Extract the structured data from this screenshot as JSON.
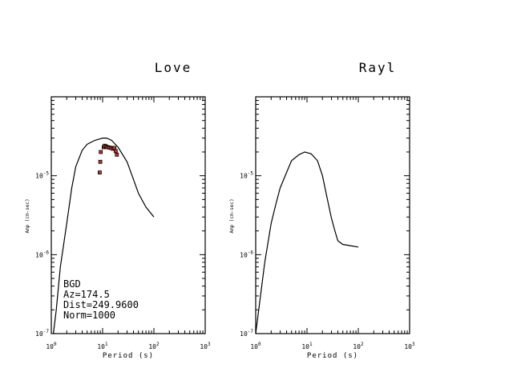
{
  "chart_data": [
    {
      "type": "line",
      "title": "Love",
      "xlabel": "Period (s)",
      "ylabel": "Amp (cm-sec)",
      "xscale": "log",
      "yscale": "log",
      "xlim": [
        1,
        1000
      ],
      "ylim": [
        1e-07,
        0.0001
      ],
      "x_ticks": [
        "10^0",
        "10^1",
        "10^2",
        "10^3"
      ],
      "y_ticks": [
        "10^-7",
        "10^-6",
        "10^-5"
      ],
      "series": [
        {
          "kind": "line",
          "x": [
            1.1,
            1.25,
            1.5,
            2.0,
            2.5,
            3.0,
            4.0,
            5.0,
            7.0,
            10.0,
            12.0,
            15.0,
            20.0,
            30.0,
            40.0,
            50.0,
            70.0,
            100.0
          ],
          "y": [
            8e-08,
            2e-07,
            7e-07,
            2.5e-06,
            7e-06,
            1.3e-05,
            2.1e-05,
            2.5e-05,
            2.8e-05,
            3e-05,
            3e-05,
            2.8e-05,
            2.3e-05,
            1.5e-05,
            9e-06,
            6e-06,
            4e-06,
            3e-06
          ]
        },
        {
          "kind": "scatter",
          "color": "#c0392b",
          "x": [
            8.8,
            9.0,
            9.2,
            10.5,
            11.0,
            11.7,
            12.5,
            13.5,
            14.5,
            15.8,
            17.0,
            18.0,
            19.0
          ],
          "y": [
            1.1e-05,
            1.5e-05,
            2e-05,
            2.3e-05,
            2.4e-05,
            2.35e-05,
            2.3e-05,
            2.28e-05,
            2.25e-05,
            2.2e-05,
            2.25e-05,
            2.05e-05,
            1.85e-05
          ]
        }
      ],
      "annotations": [
        "BGD",
        "Az=174.5",
        "Dist=249.9600",
        "Norm=1000"
      ]
    },
    {
      "type": "line",
      "title": "Rayl",
      "xlabel": "Period (s)",
      "ylabel": "Amp (cm-sec)",
      "xscale": "log",
      "yscale": "log",
      "xlim": [
        1,
        1000
      ],
      "ylim": [
        1e-07,
        0.0001
      ],
      "x_ticks": [
        "10^0",
        "10^1",
        "10^2",
        "10^3"
      ],
      "y_ticks": [
        "10^-7",
        "10^-6",
        "10^-5"
      ],
      "series": [
        {
          "kind": "line",
          "x": [
            1.0,
            1.5,
            2.0,
            2.5,
            3.0,
            4.0,
            5.0,
            7.0,
            9.0,
            12.0,
            16.0,
            20.0,
            25.0,
            30.0,
            35.0,
            40.0,
            50.0,
            70.0,
            100.0
          ],
          "y": [
            8e-08,
            8e-07,
            2.5e-06,
            4.5e-06,
            7e-06,
            1.1e-05,
            1.55e-05,
            1.85e-05,
            2e-05,
            1.9e-05,
            1.55e-05,
            1e-05,
            5e-06,
            2.9e-06,
            2e-06,
            1.5e-06,
            1.35e-06,
            1.3e-06,
            1.25e-06
          ]
        }
      ]
    }
  ]
}
